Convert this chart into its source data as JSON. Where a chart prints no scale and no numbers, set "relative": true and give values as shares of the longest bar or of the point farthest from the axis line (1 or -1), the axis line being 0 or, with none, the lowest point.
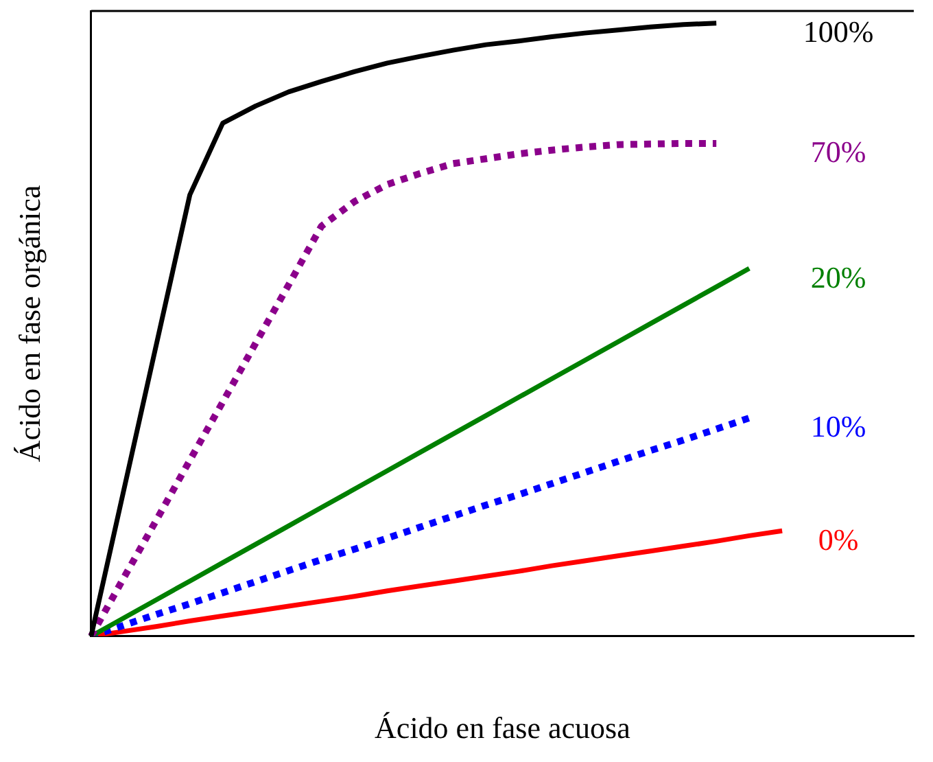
{
  "chart_data": {
    "type": "line",
    "relative": true,
    "xlabel": "Ácido en fase acuosa",
    "ylabel": "Ácido en fase orgánica",
    "legend": false,
    "marker": "none",
    "categories": [
      null,
      null,
      null,
      null,
      null,
      null,
      null,
      null,
      null,
      null,
      null,
      null,
      null,
      null,
      null,
      null,
      null,
      null,
      null,
      null,
      null,
      null,
      null,
      null,
      null,
      null
    ],
    "series": [
      {
        "name": "100%",
        "color": "#000000",
        "line_style": "solid",
        "values": [
          0,
          0.24,
          0.48,
          0.72,
          0.837,
          0.865,
          0.888,
          0.905,
          0.921,
          0.935,
          0.946,
          0.956,
          0.965,
          0.971,
          0.978,
          0.984,
          0.989,
          0.994,
          0.998,
          1,
          null,
          null,
          null,
          null,
          null,
          null
        ]
      },
      {
        "name": "70%",
        "color": "#8b008b",
        "line_style": "dotted",
        "values": [
          0,
          0.096,
          0.191,
          0.287,
          0.382,
          0.478,
          0.573,
          0.669,
          0.709,
          0.737,
          0.755,
          0.771,
          0.779,
          0.787,
          0.793,
          0.798,
          0.802,
          0.803,
          0.804,
          0.804,
          null,
          null,
          null,
          null,
          null,
          null
        ]
      },
      {
        "name": "20%",
        "color": "#008000",
        "line_style": "solid",
        "values": [
          0,
          0.03,
          0.06,
          0.09,
          0.12,
          0.15,
          0.18,
          0.21,
          0.24,
          0.27,
          0.3,
          0.33,
          0.36,
          0.39,
          0.42,
          0.45,
          0.48,
          0.51,
          0.54,
          0.57,
          0.6,
          null,
          null,
          null,
          null,
          null
        ]
      },
      {
        "name": "10%",
        "color": "#0000ff",
        "line_style": "dotted",
        "values": [
          0,
          0.018,
          0.036,
          0.053,
          0.071,
          0.089,
          0.107,
          0.125,
          0.142,
          0.16,
          0.178,
          0.196,
          0.214,
          0.231,
          0.249,
          0.267,
          0.285,
          0.303,
          0.32,
          0.338,
          0.356,
          null,
          null,
          null,
          null,
          null
        ]
      },
      {
        "name": "0%",
        "color": "#ff0000",
        "line_style": "solid",
        "values": [
          0,
          0.008,
          0.016,
          0.025,
          0.033,
          0.041,
          0.049,
          0.057,
          0.065,
          0.074,
          0.082,
          0.09,
          0.098,
          0.106,
          0.115,
          0.123,
          0.131,
          0.139,
          0.147,
          0.155,
          0.164,
          0.172,
          null,
          null,
          null,
          null
        ]
      }
    ]
  }
}
